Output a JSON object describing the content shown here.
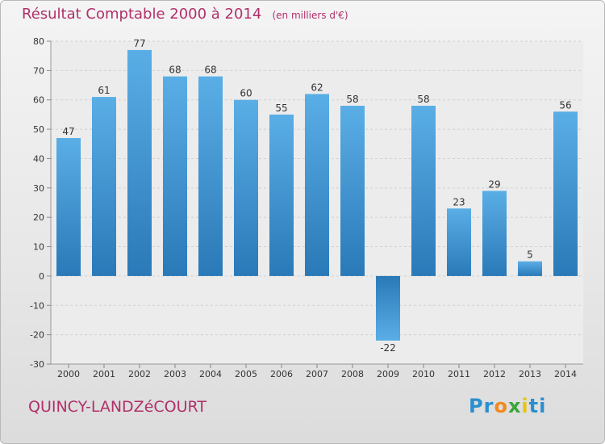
{
  "title": "Résultat Comptable 2000 à 2014",
  "unit": "(en milliers d'€)",
  "commune": "QUINCY-LANDZéCOURT",
  "logo": {
    "letters": [
      "P",
      "r",
      "o",
      "x",
      "i",
      "t",
      "i"
    ]
  },
  "colors": {
    "title": "#b0306a",
    "bar_top": "#5aaee6",
    "bar_bottom": "#2a79b8",
    "logo": [
      "#2a8fd0",
      "#2a8fd0",
      "#f08a1c",
      "#3aa53a",
      "#e8c40e",
      "#2a8fd0",
      "#2a8fd0"
    ]
  },
  "chart_data": {
    "type": "bar",
    "title": "Résultat Comptable 2000 à 2014",
    "subtitle": "(en milliers d'€)",
    "xlabel": "",
    "ylabel": "",
    "ylim": [
      -30,
      80
    ],
    "yticks": [
      -30,
      -20,
      -10,
      0,
      10,
      20,
      30,
      40,
      50,
      60,
      70,
      80
    ],
    "grid": true,
    "categories": [
      "2000",
      "2001",
      "2002",
      "2003",
      "2004",
      "2005",
      "2006",
      "2007",
      "2008",
      "2009",
      "2010",
      "2011",
      "2012",
      "2013",
      "2014"
    ],
    "values": [
      47,
      61,
      77,
      68,
      68,
      60,
      55,
      62,
      58,
      -22,
      58,
      23,
      29,
      5,
      56
    ]
  }
}
